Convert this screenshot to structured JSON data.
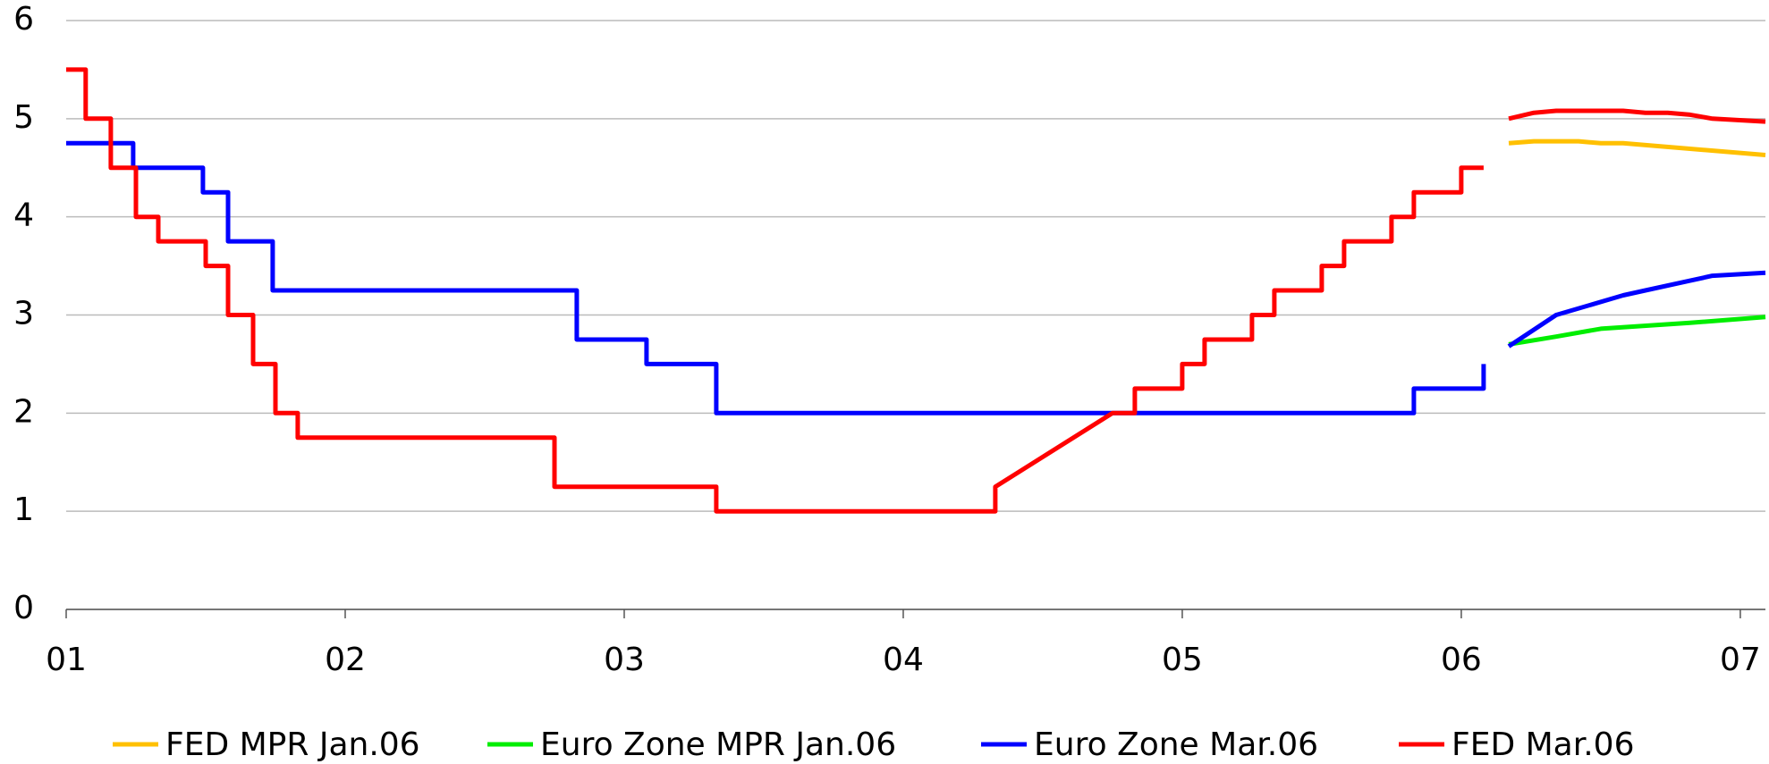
{
  "chart_data": {
    "type": "line",
    "xlim": [
      2001,
      2007.09
    ],
    "xticks": [
      {
        "value": 2001,
        "label": "01"
      },
      {
        "value": 2002,
        "label": "02"
      },
      {
        "value": 2003,
        "label": "03"
      },
      {
        "value": 2004,
        "label": "04"
      },
      {
        "value": 2005,
        "label": "05"
      },
      {
        "value": 2006,
        "label": "06"
      },
      {
        "value": 2007,
        "label": "07"
      }
    ],
    "ylim": [
      0,
      6
    ],
    "yticks": [
      0,
      1,
      2,
      3,
      4,
      5,
      6
    ],
    "grid": true,
    "legend": "bottom",
    "series": [
      {
        "name": "FED MPR Jan.06",
        "color": "#ffc000",
        "x": [
          2006.17,
          2006.26,
          2006.42,
          2006.5,
          2006.58,
          2007.09
        ],
        "values": [
          4.75,
          4.77,
          4.77,
          4.75,
          4.75,
          4.63
        ]
      },
      {
        "name": "Euro Zone MPR Jan.06",
        "color": "#00ee00",
        "x": [
          2006.17,
          2006.34,
          2006.5,
          2006.82,
          2007.09
        ],
        "values": [
          2.7,
          2.78,
          2.86,
          2.92,
          2.98
        ]
      },
      {
        "name": "Euro Zone Mar.06",
        "color": "#0000ff",
        "x": [
          2001,
          2001.24,
          2001.24,
          2001.49,
          2001.49,
          2001.58,
          2001.58,
          2001.74,
          2001.74,
          2002.83,
          2002.83,
          2003.08,
          2003.08,
          2003.33,
          2003.33,
          2005.83,
          2005.83,
          2006.08,
          2006.08,
          null,
          2006.17,
          2006.34,
          2006.58,
          2006.66,
          2006.82,
          2006.9,
          2007.09
        ],
        "values": [
          4.75,
          4.75,
          4.5,
          4.5,
          4.25,
          4.25,
          3.75,
          3.75,
          3.25,
          3.25,
          2.75,
          2.75,
          2.5,
          2.5,
          2,
          2,
          2.25,
          2.25,
          2.5,
          null,
          2.68,
          3.0,
          3.2,
          3.25,
          3.35,
          3.4,
          3.43
        ]
      },
      {
        "name": "FED Mar.06",
        "color": "#ff0000",
        "x": [
          2001,
          2001.07,
          2001.07,
          2001.16,
          2001.16,
          2001.25,
          2001.25,
          2001.33,
          2001.33,
          2001.5,
          2001.5,
          2001.58,
          2001.58,
          2001.67,
          2001.67,
          2001.75,
          2001.75,
          2001.83,
          2001.83,
          2002.75,
          2002.75,
          2003.33,
          2003.33,
          2004.33,
          2004.33,
          2004.75,
          2004.83,
          2004.83,
          2005,
          2005,
          2005.08,
          2005.08,
          2005.25,
          2005.25,
          2005.33,
          2005.33,
          2005.5,
          2005.5,
          2005.58,
          2005.58,
          2005.75,
          2005.75,
          2005.83,
          2005.83,
          2006,
          2006,
          2006.08,
          null,
          2006.17,
          2006.26,
          2006.34,
          2006.58,
          2006.66,
          2006.74,
          2006.82,
          2006.9,
          2007.09
        ],
        "values": [
          5.5,
          5.5,
          5,
          5,
          4.5,
          4.5,
          4,
          4,
          3.75,
          3.75,
          3.5,
          3.5,
          3,
          3,
          2.5,
          2.5,
          2,
          2,
          1.75,
          1.75,
          1.25,
          1.25,
          1,
          1,
          1.25,
          2,
          2,
          2.25,
          2.25,
          2.5,
          2.5,
          2.75,
          2.75,
          3,
          3,
          3.25,
          3.25,
          3.5,
          3.5,
          3.75,
          3.75,
          4,
          4,
          4.25,
          4.25,
          4.5,
          4.5,
          null,
          5,
          5.06,
          5.08,
          5.08,
          5.06,
          5.06,
          5.04,
          5.0,
          4.97
        ]
      }
    ]
  }
}
